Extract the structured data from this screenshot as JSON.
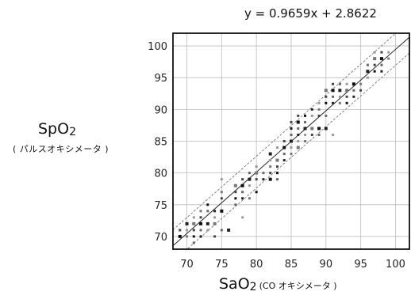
{
  "chart_data": {
    "type": "scatter",
    "equation": "y = 0.9659x + 2.8622",
    "xlabel": {
      "main": "SaO",
      "sub": "2",
      "note": "(CO オキシメータ )"
    },
    "ylabel": {
      "main": "SpO",
      "sub": "2",
      "note": "( パルスオキシメータ )"
    },
    "xlim": [
      68,
      102
    ],
    "ylim": [
      68,
      102
    ],
    "xticks": [
      70,
      75,
      80,
      85,
      90,
      95,
      100
    ],
    "yticks": [
      70,
      75,
      80,
      85,
      90,
      95,
      100
    ],
    "grid": true,
    "regression": {
      "slope": 0.9659,
      "intercept": 2.8622
    },
    "confidence_band_offset": 2.5,
    "points": [
      {
        "x": 69,
        "y": 70
      },
      {
        "x": 69,
        "y": 71
      },
      {
        "x": 70,
        "y": 70
      },
      {
        "x": 70,
        "y": 71
      },
      {
        "x": 70,
        "y": 72
      },
      {
        "x": 71,
        "y": 69
      },
      {
        "x": 71,
        "y": 70
      },
      {
        "x": 71,
        "y": 71
      },
      {
        "x": 71,
        "y": 72
      },
      {
        "x": 71,
        "y": 73
      },
      {
        "x": 72,
        "y": 70
      },
      {
        "x": 72,
        "y": 71
      },
      {
        "x": 72,
        "y": 72
      },
      {
        "x": 72,
        "y": 73
      },
      {
        "x": 72,
        "y": 74
      },
      {
        "x": 73,
        "y": 71
      },
      {
        "x": 73,
        "y": 72
      },
      {
        "x": 73,
        "y": 74
      },
      {
        "x": 73,
        "y": 75
      },
      {
        "x": 74,
        "y": 70
      },
      {
        "x": 74,
        "y": 72
      },
      {
        "x": 74,
        "y": 73
      },
      {
        "x": 74,
        "y": 74
      },
      {
        "x": 75,
        "y": 71
      },
      {
        "x": 75,
        "y": 74
      },
      {
        "x": 75,
        "y": 76
      },
      {
        "x": 75,
        "y": 77
      },
      {
        "x": 75,
        "y": 79
      },
      {
        "x": 76,
        "y": 71
      },
      {
        "x": 77,
        "y": 75
      },
      {
        "x": 77,
        "y": 76
      },
      {
        "x": 77,
        "y": 77
      },
      {
        "x": 77,
        "y": 78
      },
      {
        "x": 78,
        "y": 73
      },
      {
        "x": 78,
        "y": 76
      },
      {
        "x": 78,
        "y": 77
      },
      {
        "x": 78,
        "y": 78
      },
      {
        "x": 78,
        "y": 79
      },
      {
        "x": 79,
        "y": 76
      },
      {
        "x": 79,
        "y": 78
      },
      {
        "x": 79,
        "y": 79
      },
      {
        "x": 79,
        "y": 80
      },
      {
        "x": 80,
        "y": 77
      },
      {
        "x": 80,
        "y": 79
      },
      {
        "x": 80,
        "y": 80
      },
      {
        "x": 80,
        "y": 81
      },
      {
        "x": 81,
        "y": 79
      },
      {
        "x": 81,
        "y": 80
      },
      {
        "x": 82,
        "y": 79
      },
      {
        "x": 82,
        "y": 80
      },
      {
        "x": 82,
        "y": 81
      },
      {
        "x": 82,
        "y": 82
      },
      {
        "x": 82,
        "y": 83
      },
      {
        "x": 83,
        "y": 79
      },
      {
        "x": 83,
        "y": 80
      },
      {
        "x": 83,
        "y": 81
      },
      {
        "x": 83,
        "y": 82
      },
      {
        "x": 83,
        "y": 84
      },
      {
        "x": 84,
        "y": 82
      },
      {
        "x": 84,
        "y": 83
      },
      {
        "x": 84,
        "y": 84
      },
      {
        "x": 84,
        "y": 85
      },
      {
        "x": 85,
        "y": 83
      },
      {
        "x": 85,
        "y": 84
      },
      {
        "x": 85,
        "y": 85
      },
      {
        "x": 85,
        "y": 86
      },
      {
        "x": 85,
        "y": 87
      },
      {
        "x": 85,
        "y": 88
      },
      {
        "x": 86,
        "y": 84
      },
      {
        "x": 86,
        "y": 85
      },
      {
        "x": 86,
        "y": 86
      },
      {
        "x": 86,
        "y": 87
      },
      {
        "x": 86,
        "y": 88
      },
      {
        "x": 86,
        "y": 89
      },
      {
        "x": 87,
        "y": 85
      },
      {
        "x": 87,
        "y": 86
      },
      {
        "x": 87,
        "y": 87
      },
      {
        "x": 87,
        "y": 88
      },
      {
        "x": 87,
        "y": 89
      },
      {
        "x": 88,
        "y": 86
      },
      {
        "x": 88,
        "y": 87
      },
      {
        "x": 88,
        "y": 89
      },
      {
        "x": 88,
        "y": 90
      },
      {
        "x": 89,
        "y": 86
      },
      {
        "x": 89,
        "y": 87
      },
      {
        "x": 89,
        "y": 89
      },
      {
        "x": 89,
        "y": 90
      },
      {
        "x": 89,
        "y": 91
      },
      {
        "x": 90,
        "y": 87
      },
      {
        "x": 90,
        "y": 89
      },
      {
        "x": 90,
        "y": 91
      },
      {
        "x": 90,
        "y": 92
      },
      {
        "x": 90,
        "y": 93
      },
      {
        "x": 91,
        "y": 86
      },
      {
        "x": 91,
        "y": 91
      },
      {
        "x": 91,
        "y": 92
      },
      {
        "x": 91,
        "y": 93
      },
      {
        "x": 91,
        "y": 94
      },
      {
        "x": 92,
        "y": 91
      },
      {
        "x": 92,
        "y": 92
      },
      {
        "x": 92,
        "y": 93
      },
      {
        "x": 92,
        "y": 94
      },
      {
        "x": 93,
        "y": 91
      },
      {
        "x": 93,
        "y": 92
      },
      {
        "x": 93,
        "y": 93
      },
      {
        "x": 93,
        "y": 94
      },
      {
        "x": 94,
        "y": 92
      },
      {
        "x": 94,
        "y": 93
      },
      {
        "x": 94,
        "y": 94
      },
      {
        "x": 95,
        "y": 93
      },
      {
        "x": 95,
        "y": 94
      },
      {
        "x": 96,
        "y": 95
      },
      {
        "x": 96,
        "y": 96
      },
      {
        "x": 96,
        "y": 97
      },
      {
        "x": 97,
        "y": 96
      },
      {
        "x": 97,
        "y": 97
      },
      {
        "x": 97,
        "y": 98
      },
      {
        "x": 97,
        "y": 99
      },
      {
        "x": 98,
        "y": 96
      },
      {
        "x": 98,
        "y": 97
      },
      {
        "x": 98,
        "y": 98
      },
      {
        "x": 98,
        "y": 99
      },
      {
        "x": 99,
        "y": 98
      },
      {
        "x": 99,
        "y": 99
      }
    ],
    "colors": {
      "line": "#222222",
      "band": "#777777",
      "grid": "#bdbdbd",
      "frame": "#111111",
      "points": "#333333"
    }
  }
}
